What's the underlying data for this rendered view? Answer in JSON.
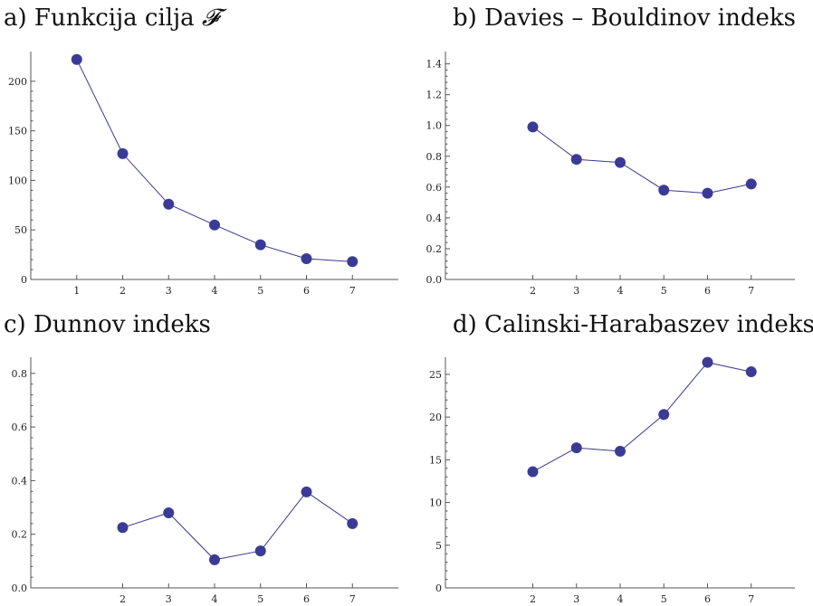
{
  "chart_data": [
    {
      "type": "line",
      "title": "a) Funkcija cilja ",
      "title_symbol": "𝓕",
      "xlabel": "",
      "ylabel": "",
      "xlim": [
        0,
        8
      ],
      "ylim": [
        0,
        230
      ],
      "x_ticks": [
        1,
        2,
        3,
        4,
        5,
        6,
        7
      ],
      "y_ticks": [
        0,
        50,
        100,
        150,
        200
      ],
      "y_tick_labels": [
        "0",
        "50",
        "100",
        "150",
        "200"
      ],
      "x": [
        1,
        2,
        3,
        4,
        5,
        6,
        7
      ],
      "y": [
        222,
        127,
        76,
        55,
        35,
        21,
        18
      ]
    },
    {
      "type": "line",
      "title": "b) Davies – Bouldinov indeks",
      "xlabel": "",
      "ylabel": "",
      "xlim": [
        0,
        8
      ],
      "ylim": [
        0,
        1.48
      ],
      "x_ticks": [
        2,
        3,
        4,
        5,
        6,
        7
      ],
      "y_ticks": [
        0,
        0.2,
        0.4,
        0.6,
        0.8,
        1.0,
        1.2,
        1.4
      ],
      "y_tick_labels": [
        "0.0",
        "0.2",
        "0.4",
        "0.6",
        "0.8",
        "1.0",
        "1.2",
        "1.4"
      ],
      "x": [
        2,
        3,
        4,
        5,
        6,
        7
      ],
      "y": [
        0.99,
        0.78,
        0.76,
        0.58,
        0.56,
        0.62
      ]
    },
    {
      "type": "line",
      "title": "c) Dunnov indeks",
      "xlabel": "",
      "ylabel": "",
      "xlim": [
        0,
        8
      ],
      "ylim": [
        0,
        0.86
      ],
      "x_ticks": [
        2,
        3,
        4,
        5,
        6,
        7
      ],
      "y_ticks": [
        0,
        0.2,
        0.4,
        0.6,
        0.8
      ],
      "y_tick_labels": [
        "0.0",
        "0.2",
        "0.4",
        "0.6",
        "0.8"
      ],
      "x": [
        2,
        3,
        4,
        5,
        6,
        7
      ],
      "y": [
        0.225,
        0.28,
        0.105,
        0.138,
        0.358,
        0.24
      ]
    },
    {
      "type": "line",
      "title": "d) Calinski-Harabaszev indeks",
      "xlabel": "",
      "ylabel": "",
      "xlim": [
        0,
        8
      ],
      "ylim": [
        0,
        27
      ],
      "x_ticks": [
        2,
        3,
        4,
        5,
        6,
        7
      ],
      "y_ticks": [
        0,
        5,
        10,
        15,
        20,
        25
      ],
      "y_tick_labels": [
        "0",
        "5",
        "10",
        "15",
        "20",
        "25"
      ],
      "x": [
        2,
        3,
        4,
        5,
        6,
        7
      ],
      "y": [
        13.6,
        16.4,
        16.0,
        20.3,
        26.4,
        25.3
      ]
    }
  ],
  "colors": {
    "series": "#3a3a8c",
    "point": "#3b3b96",
    "axis": "#555555"
  }
}
